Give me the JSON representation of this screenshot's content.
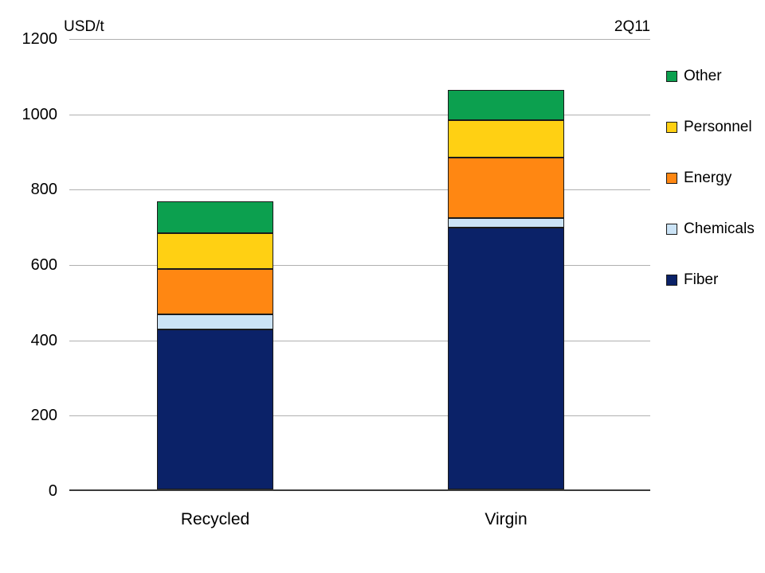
{
  "header": {
    "unit_label": "USD/t",
    "period_label": "2Q11"
  },
  "chart_data": {
    "type": "bar",
    "stacked": true,
    "ylabel": "USD/t",
    "annotation": "2Q11",
    "categories": [
      "Recycled",
      "Virgin"
    ],
    "series": [
      {
        "name": "Fiber",
        "color": "#0b2268",
        "values": [
          425,
          695
        ]
      },
      {
        "name": "Chemicals",
        "color": "#cbe3f6",
        "values": [
          40,
          25
        ]
      },
      {
        "name": "Energy",
        "color": "#ff8712",
        "values": [
          120,
          160
        ]
      },
      {
        "name": "Personnel",
        "color": "#ffd013",
        "values": [
          95,
          100
        ]
      },
      {
        "name": "Other",
        "color": "#0ca04f",
        "values": [
          85,
          80
        ]
      }
    ],
    "legend": [
      {
        "label": "Other",
        "color": "#0ca04f"
      },
      {
        "label": "Personnel",
        "color": "#ffd013"
      },
      {
        "label": "Energy",
        "color": "#ff8712"
      },
      {
        "label": "Chemicals",
        "color": "#cbe3f6"
      },
      {
        "label": "Fiber",
        "color": "#0b2268"
      }
    ],
    "ylim": [
      0,
      1200
    ],
    "yticks": [
      "0",
      "200",
      "400",
      "600",
      "800",
      "1000",
      "1200"
    ],
    "grid": true,
    "legend_position": "right"
  },
  "colors": {
    "gridline": "#b0b0b0",
    "axis": "#3c3c3c",
    "segment_border": "#1a1a1a",
    "background": "#ffffff"
  }
}
